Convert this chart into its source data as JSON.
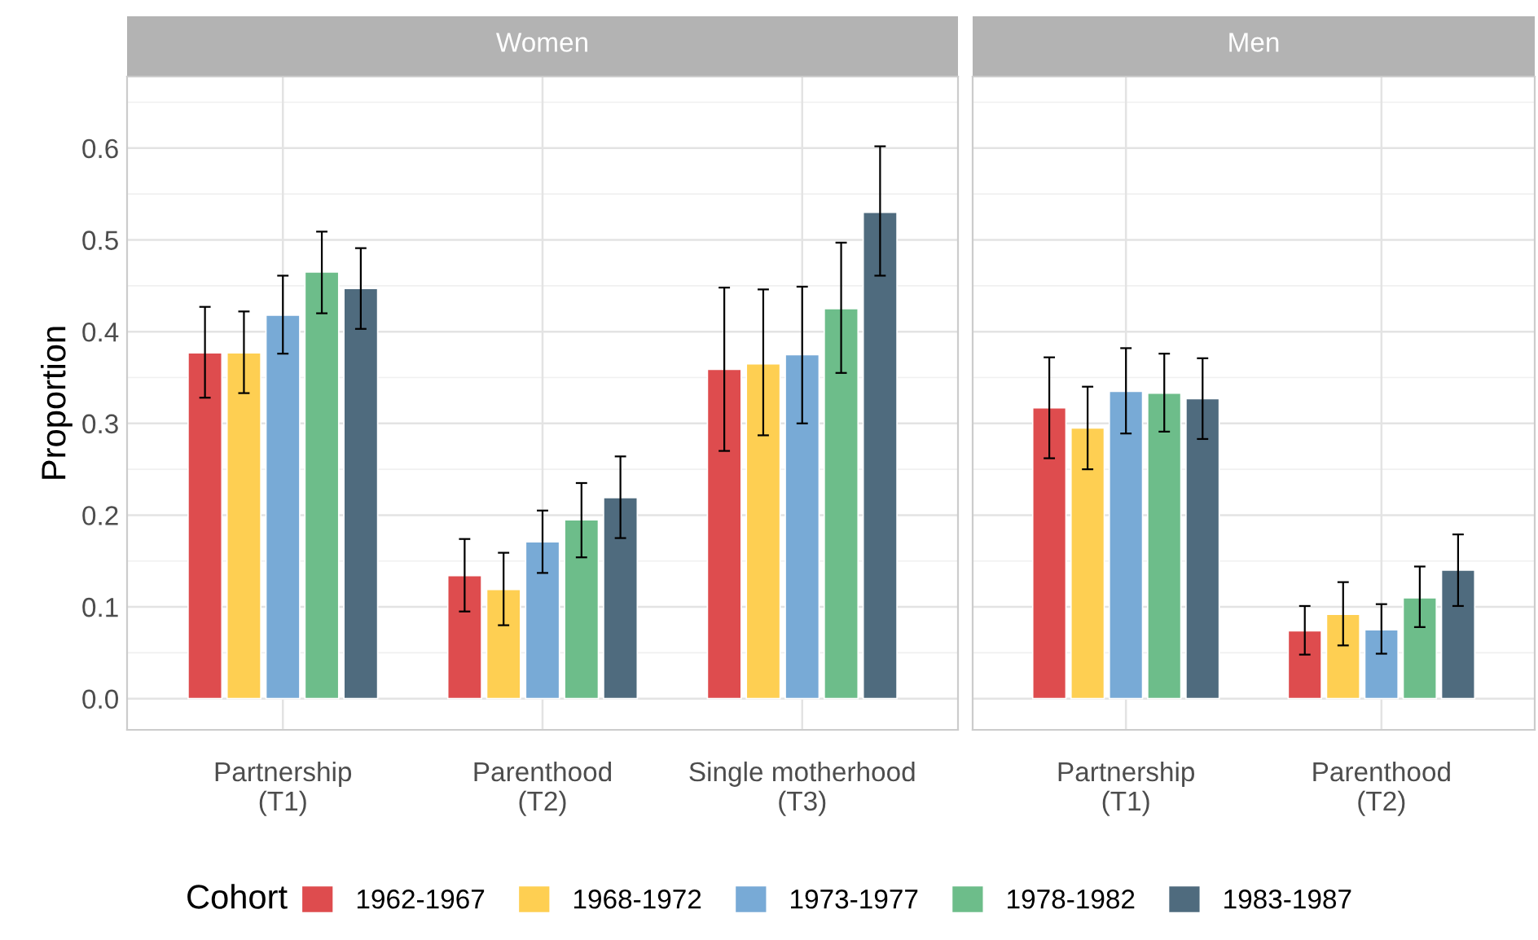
{
  "chart_data": [
    {
      "type": "bar",
      "title": "Women",
      "ylabel": "Proportion",
      "legend_title": "Cohort",
      "legend": "bottom",
      "grid": true,
      "categories": [
        "Partnership\n(T1)",
        "Parenthood\n(T2)",
        "Single motherhood\n(T3)"
      ],
      "ylim": [
        -0.034,
        0.678
      ],
      "yticks": [
        {
          "value": 0,
          "label": "0.0"
        },
        0.1,
        0.2,
        0.3,
        0.4,
        0.5,
        0.6
      ],
      "series": [
        {
          "name": "1962-1967",
          "color": "#de4c4e",
          "values": [
            0.377,
            0.134,
            0.359
          ],
          "errors": [
            [
              0.328,
              0.427
            ],
            [
              0.095,
              0.174
            ],
            [
              0.27,
              0.448
            ]
          ]
        },
        {
          "name": "1968-1972",
          "color": "#fecf52",
          "values": [
            0.377,
            0.119,
            0.365
          ],
          "errors": [
            [
              0.333,
              0.422
            ],
            [
              0.08,
              0.159
            ],
            [
              0.287,
              0.446
            ]
          ]
        },
        {
          "name": "1973-1977",
          "color": "#78aad6",
          "values": [
            0.418,
            0.171,
            0.375
          ],
          "errors": [
            [
              0.376,
              0.461
            ],
            [
              0.137,
              0.205
            ],
            [
              0.3,
              0.449
            ]
          ]
        },
        {
          "name": "1978-1982",
          "color": "#6dbd8a",
          "values": [
            0.465,
            0.195,
            0.425
          ],
          "errors": [
            [
              0.42,
              0.509
            ],
            [
              0.154,
              0.235
            ],
            [
              0.355,
              0.497
            ]
          ]
        },
        {
          "name": "1983-1987",
          "color": "#4f6b7e",
          "values": [
            0.447,
            0.219,
            0.53
          ],
          "errors": [
            [
              0.403,
              0.491
            ],
            [
              0.175,
              0.264
            ],
            [
              0.461,
              0.602
            ]
          ]
        }
      ]
    },
    {
      "type": "bar",
      "title": "Men",
      "grid": true,
      "tick_labels": "x",
      "categories": [
        "Partnership\n(T1)",
        "Parenthood\n(T2)"
      ],
      "ylim": [
        -0.034,
        0.678
      ],
      "yticks": [
        0,
        0.1,
        0.2,
        0.3,
        0.4,
        0.5,
        0.6
      ],
      "series": [
        {
          "color": "#de4c4e",
          "values": [
            0.317,
            0.074
          ],
          "errors": [
            [
              0.262,
              0.372
            ],
            [
              0.048,
              0.101
            ]
          ]
        },
        {
          "color": "#fecf52",
          "values": [
            0.295,
            0.092
          ],
          "errors": [
            [
              0.25,
              0.34
            ],
            [
              0.058,
              0.127
            ]
          ]
        },
        {
          "color": "#78aad6",
          "values": [
            0.335,
            0.075
          ],
          "errors": [
            [
              0.289,
              0.382
            ],
            [
              0.049,
              0.103
            ]
          ]
        },
        {
          "color": "#6dbd8a",
          "values": [
            0.333,
            0.11
          ],
          "errors": [
            [
              0.291,
              0.376
            ],
            [
              0.078,
              0.144
            ]
          ]
        },
        {
          "color": "#4f6b7e",
          "values": [
            0.327,
            0.14
          ],
          "errors": [
            [
              0.283,
              0.371
            ],
            [
              0.101,
              0.179
            ]
          ]
        }
      ]
    }
  ]
}
